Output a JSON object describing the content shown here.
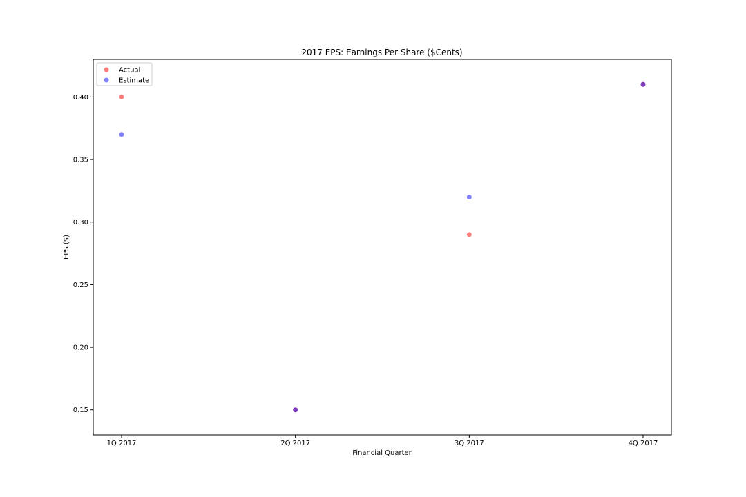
{
  "chart_data": {
    "type": "scatter",
    "title": "2017 EPS: Earnings Per Share  ($Cents)",
    "xlabel": "Financial Quarter",
    "ylabel": "EPS ($)",
    "categories": [
      "1Q 2017",
      "2Q 2017",
      "3Q 2017",
      "4Q 2017"
    ],
    "ylim": [
      0.13,
      0.43
    ],
    "yticks": [
      0.15,
      0.2,
      0.25,
      0.3,
      0.35,
      0.4
    ],
    "ytick_labels": [
      "0.15",
      "0.20",
      "0.25",
      "0.30",
      "0.35",
      "0.40"
    ],
    "grid": false,
    "legend_position": "top-left",
    "series": [
      {
        "name": "Actual",
        "color": "#ff0000",
        "values": [
          0.4,
          0.15,
          0.29,
          0.41
        ]
      },
      {
        "name": "Estimate",
        "color": "#0000ff",
        "values": [
          0.37,
          0.15,
          0.32,
          0.41
        ]
      }
    ]
  }
}
